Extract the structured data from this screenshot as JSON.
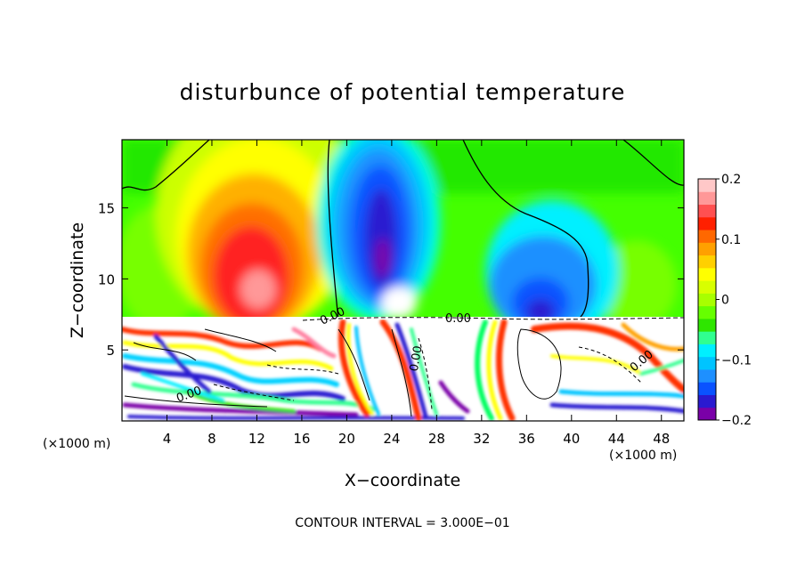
{
  "chart_data": {
    "type": "heatmap",
    "title": "disturbunce of potential temperature",
    "xlabel": "X−coordinate",
    "ylabel": "Z−coordinate",
    "x_unit_left": "(×1000 m)",
    "x_unit_right": "(×1000 m)",
    "footer": "CONTOUR INTERVAL = 3.000E−01",
    "xlim": [
      0,
      50
    ],
    "ylim": [
      0,
      19.8
    ],
    "x_ticks": [
      4,
      8,
      12,
      16,
      20,
      24,
      28,
      32,
      36,
      40,
      44,
      48
    ],
    "y_ticks": [
      5,
      10,
      15
    ],
    "colorbar": {
      "range": [
        -0.2,
        0.2
      ],
      "tick_values": [
        0.2,
        0.1,
        0,
        -0.1,
        -0.2
      ],
      "tick_labels": [
        "0.2",
        "0.1",
        "0",
        "−0.1",
        "−0.2"
      ],
      "colors": [
        "#7a00a8",
        "#2a1ad0",
        "#0a52ff",
        "#1e90ff",
        "#00c4ff",
        "#00f0ff",
        "#30ff90",
        "#2ee600",
        "#66ff00",
        "#a8ff00",
        "#d8ff00",
        "#ffff00",
        "#ffd000",
        "#ffa000",
        "#ff6800",
        "#ff2000",
        "#ff5050",
        "#ff9898",
        "#ffc8c8"
      ]
    },
    "contour_labels": [
      "0.00",
      "0.00",
      "0.00",
      "0.00",
      "0.00"
    ],
    "upper_features": [
      {
        "type": "warm",
        "x": 11.5,
        "z": 11.5,
        "value": 0.18
      },
      {
        "type": "cold",
        "x": 23.5,
        "z": 13,
        "value": -0.19
      },
      {
        "type": "cold",
        "x": 37.5,
        "z": 9,
        "value": -0.17
      },
      {
        "type": "warm",
        "x": 3,
        "z": 10,
        "value": 0.05
      },
      {
        "type": "warm",
        "x": 47,
        "z": 11,
        "value": 0.03
      }
    ],
    "layer_top_z": 7.3,
    "grid": false
  }
}
